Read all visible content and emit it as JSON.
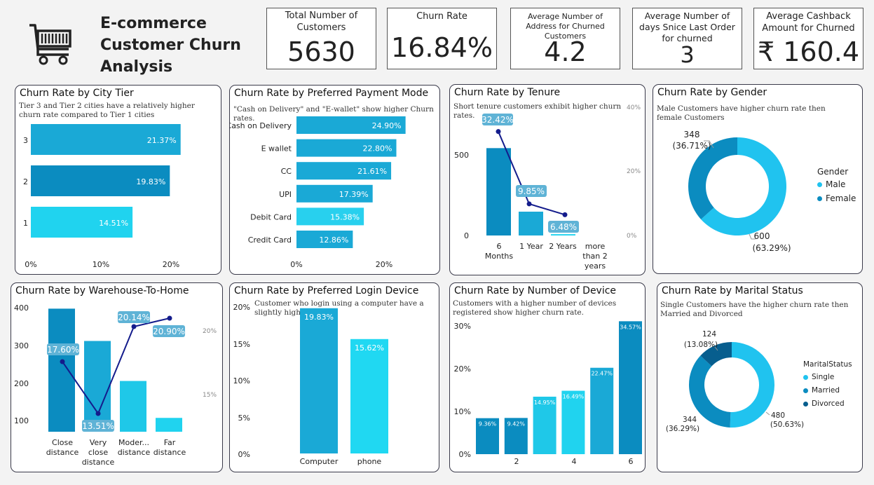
{
  "header": {
    "title_lines": [
      "E-commerce",
      "Customer Churn",
      "Analysis"
    ]
  },
  "kpis": [
    {
      "label": "Total Number of Customers",
      "value": "5630"
    },
    {
      "label": "Churn Rate",
      "value": "16.84%"
    },
    {
      "label": "Average Number of Address for Churned Customers",
      "value": "4.2"
    },
    {
      "label": "Average Number of days Snice Last Order for churned",
      "value": "3"
    },
    {
      "label": "Average Cashback Amount for Churned",
      "value": "₹ 160.4"
    }
  ],
  "colors": {
    "dark": "#0b8cc0",
    "mid": "#1aa9d6",
    "light": "#20d3ef",
    "navy": "#141c8c",
    "pill": "#5fb3d6",
    "border": "#3a3a4a"
  },
  "chart_data": [
    {
      "type": "bar",
      "title": "Churn Rate by City Tier",
      "subtitle": "Tier 3 and Tier 2 cities have a relatively higher churn rate compared to Tier 1 cities",
      "categories": [
        "3",
        "2",
        "1"
      ],
      "values": [
        21.37,
        19.83,
        14.51
      ],
      "labels": [
        "21.37%",
        "19.83%",
        "14.51%"
      ],
      "xticks": [
        "0%",
        "10%",
        "20%"
      ],
      "xlim": [
        0,
        25
      ]
    },
    {
      "type": "bar",
      "title": "Churn Rate by Preferred Payment Mode",
      "subtitle": "\"Cash on Delivery\" and \"E-wallet\" show higher Churn rates.",
      "categories": [
        "Cash on Delivery",
        "E wallet",
        "CC",
        "UPI",
        "Debit Card",
        "Credit Card"
      ],
      "values": [
        24.9,
        22.8,
        21.61,
        17.39,
        15.38,
        12.86
      ],
      "labels": [
        "24.90%",
        "22.80%",
        "21.61%",
        "17.39%",
        "15.38%",
        "12.86%"
      ],
      "xticks": [
        "0%",
        "20%"
      ],
      "xlim": [
        0,
        25
      ]
    },
    {
      "type": "bar",
      "title": "Churn Rate by Tenure",
      "subtitle": "Short tenure customers exhibit higher churn rates.",
      "categories": [
        "6 Months",
        "1 Year",
        "2 Years",
        "more than 2 years"
      ],
      "values": [
        660,
        180,
        10,
        0
      ],
      "line_values": [
        32.42,
        9.85,
        6.48,
        null
      ],
      "line_labels": [
        "32.42%",
        "9.85%",
        "6.48%",
        ""
      ],
      "yticks": [
        "500",
        "0"
      ],
      "y2ticks": [
        "40%",
        "20%",
        "0%"
      ],
      "ylim": [
        0,
        900
      ],
      "y2lim": [
        0,
        40
      ]
    },
    {
      "type": "pie",
      "title": "Churn Rate by Gender",
      "subtitle": "Male Customers have  higher churn rate then female Customers",
      "legend_title": "Gender",
      "categories": [
        "Male",
        "Female"
      ],
      "values": [
        600,
        348
      ],
      "labels": [
        [
          "600",
          "(63.29%)"
        ],
        [
          "348",
          "(36.71%)"
        ]
      ]
    },
    {
      "type": "bar",
      "title": "Churn Rate by Warehouse-To-Home",
      "categories": [
        "Close distance",
        "Very close distance",
        "Moder... distance",
        "Far distance"
      ],
      "values": [
        400,
        295,
        165,
        45
      ],
      "line_values": [
        17.6,
        13.51,
        20.14,
        20.9
      ],
      "line_labels": [
        "17.60%",
        "13.51%",
        "20.14%",
        "20.90%"
      ],
      "yticks": [
        "400",
        "300",
        "200",
        "100"
      ],
      "y2ticks": [
        "20%",
        "15%"
      ],
      "ylim": [
        0,
        410
      ],
      "y2lim": [
        12,
        22
      ]
    },
    {
      "type": "bar",
      "title": "Churn Rate by Preferred Login Device",
      "subtitle": "Customer who login using a computer have a slightly higher churn.",
      "categories": [
        "Computer",
        "phone"
      ],
      "values": [
        19.83,
        15.62
      ],
      "labels": [
        "19.83%",
        "15.62%"
      ],
      "yticks": [
        "20%",
        "15%",
        "10%",
        "5%",
        "0%"
      ],
      "ylim": [
        0,
        20
      ]
    },
    {
      "type": "bar",
      "title": "Churn Rate by Number of Device",
      "subtitle": "Customers with a higher number of devices registered show higher churn rate.",
      "categories": [
        "1",
        "2",
        "3",
        "4",
        "5",
        "6"
      ],
      "xticks": [
        "2",
        "4",
        "6"
      ],
      "values": [
        9.36,
        9.42,
        14.95,
        16.49,
        22.47,
        34.57
      ],
      "labels": [
        "9.36%",
        "9.42%",
        "14.95%",
        "16.49%",
        "22.47%",
        "34.57%"
      ],
      "yticks": [
        "30%",
        "20%",
        "10%",
        "0%"
      ],
      "ylim": [
        0,
        35
      ]
    },
    {
      "type": "pie",
      "title": "Churn Rate by Marital Status",
      "subtitle": "Single Customers have the higher churn rate then Married and Divorced",
      "legend_title": "MaritalStatus",
      "categories": [
        "Single",
        "Married",
        "Divorced"
      ],
      "values": [
        480,
        344,
        124
      ],
      "labels": [
        [
          "480",
          "(50.63%)"
        ],
        [
          "344",
          "(36.29%)"
        ],
        [
          "124",
          "(13.08%)"
        ]
      ]
    }
  ]
}
